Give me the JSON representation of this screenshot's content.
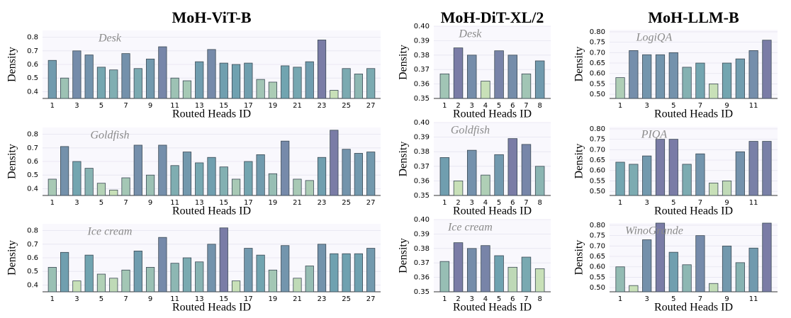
{
  "column_titles": [
    "MoH-ViT-B",
    "MoH-DiT-XL/2",
    "MoH-LLM-B"
  ],
  "chart_data": [
    {
      "type": "bar",
      "annotation": "Desk",
      "xlabel": "Routed Heads ID",
      "ylabel": "Density",
      "categories": [
        1,
        null,
        3,
        null,
        5,
        null,
        7,
        null,
        9,
        null,
        11,
        null,
        13,
        null,
        15,
        null,
        17,
        null,
        19,
        null,
        21,
        null,
        23,
        null,
        25,
        null,
        27
      ],
      "values": [
        0.63,
        0.5,
        0.7,
        0.67,
        0.58,
        0.56,
        0.68,
        0.57,
        0.64,
        0.73,
        0.5,
        0.48,
        0.62,
        0.71,
        0.61,
        0.6,
        0.61,
        0.49,
        0.47,
        0.59,
        0.58,
        0.62,
        0.78,
        0.41,
        0.57,
        0.53,
        0.57
      ],
      "ylim": [
        0.35,
        0.85
      ],
      "yticks": [
        0.4,
        0.5,
        0.6,
        0.7,
        0.8
      ],
      "grid": true,
      "colormap": [
        "#c8e0b8",
        "#6fa2b0",
        "#7a7ca6"
      ]
    },
    {
      "type": "bar",
      "annotation": "Goldfish",
      "xlabel": "Routed Heads ID",
      "ylabel": "Density",
      "categories": [
        1,
        null,
        3,
        null,
        5,
        null,
        7,
        null,
        9,
        null,
        11,
        null,
        13,
        null,
        15,
        null,
        17,
        null,
        19,
        null,
        21,
        null,
        23,
        null,
        25,
        null,
        27
      ],
      "values": [
        0.47,
        0.71,
        0.6,
        0.55,
        0.44,
        0.39,
        0.48,
        0.72,
        0.5,
        0.72,
        0.57,
        0.67,
        0.59,
        0.63,
        0.56,
        0.47,
        0.6,
        0.65,
        0.51,
        0.75,
        0.47,
        0.46,
        0.63,
        0.83,
        0.69,
        0.66,
        0.67
      ],
      "ylim": [
        0.35,
        0.85
      ],
      "yticks": [
        0.4,
        0.5,
        0.6,
        0.7,
        0.8
      ],
      "grid": true,
      "colormap": [
        "#c8e0b8",
        "#6fa2b0",
        "#7a7ca6"
      ]
    },
    {
      "type": "bar",
      "annotation": "Ice cream",
      "xlabel": "Routed Heads ID",
      "ylabel": "Density",
      "categories": [
        1,
        null,
        3,
        null,
        5,
        null,
        7,
        null,
        9,
        null,
        11,
        null,
        13,
        null,
        15,
        null,
        17,
        null,
        19,
        null,
        21,
        null,
        23,
        null,
        25,
        null,
        27
      ],
      "values": [
        0.53,
        0.64,
        0.43,
        0.62,
        0.48,
        0.45,
        0.51,
        0.65,
        0.53,
        0.75,
        0.56,
        0.6,
        0.57,
        0.7,
        0.82,
        0.43,
        0.67,
        0.62,
        0.51,
        0.69,
        0.45,
        0.54,
        0.7,
        0.63,
        0.63,
        0.63,
        0.67
      ],
      "ylim": [
        0.35,
        0.85
      ],
      "yticks": [
        0.4,
        0.5,
        0.6,
        0.7,
        0.8
      ],
      "grid": true,
      "colormap": [
        "#c8e0b8",
        "#6fa2b0",
        "#7a7ca6"
      ]
    },
    {
      "type": "bar",
      "annotation": "Desk",
      "xlabel": "Routed Heads ID",
      "ylabel": "Density",
      "categories": [
        1,
        2,
        3,
        4,
        5,
        6,
        7,
        8
      ],
      "values": [
        0.367,
        0.385,
        0.38,
        0.362,
        0.383,
        0.38,
        0.367,
        0.376
      ],
      "ylim": [
        0.35,
        0.4
      ],
      "yticks": [
        0.35,
        0.36,
        0.37,
        0.38,
        0.39,
        {
          "value": 0.4,
          "label": "0.40"
        }
      ],
      "grid": true,
      "colormap": [
        "#c8e0b8",
        "#6fa2b0",
        "#7a7ca6"
      ]
    },
    {
      "type": "bar",
      "annotation": "Goldfish",
      "xlabel": "Routed Heads ID",
      "ylabel": "Density",
      "categories": [
        1,
        2,
        3,
        4,
        5,
        6,
        7,
        8
      ],
      "values": [
        0.376,
        0.36,
        0.381,
        0.364,
        0.378,
        0.389,
        0.385,
        0.37
      ],
      "ylim": [
        0.35,
        0.4
      ],
      "yticks": [
        0.35,
        0.36,
        0.37,
        0.38,
        0.39,
        {
          "value": 0.4,
          "label": "0.40"
        }
      ],
      "grid": true,
      "colormap": [
        "#c8e0b8",
        "#6fa2b0",
        "#7a7ca6"
      ]
    },
    {
      "type": "bar",
      "annotation": "Ice cream",
      "xlabel": "Routed Heads ID",
      "ylabel": "Density",
      "categories": [
        1,
        2,
        3,
        4,
        5,
        6,
        7,
        8
      ],
      "values": [
        0.371,
        0.384,
        0.38,
        0.382,
        0.375,
        0.367,
        0.374,
        0.366
      ],
      "ylim": [
        0.35,
        0.4
      ],
      "yticks": [
        0.35,
        0.36,
        0.37,
        0.38,
        0.39,
        {
          "value": 0.4,
          "label": "0.40"
        }
      ],
      "grid": true,
      "colormap": [
        "#c8e0b8",
        "#6fa2b0",
        "#7a7ca6"
      ]
    },
    {
      "type": "bar",
      "annotation": "LogiQA",
      "xlabel": "Routed Heads ID",
      "ylabel": "Density",
      "categories": [
        1,
        null,
        3,
        null,
        5,
        null,
        7,
        null,
        9,
        null,
        11,
        null
      ],
      "values": [
        0.58,
        0.71,
        0.69,
        0.69,
        0.7,
        0.63,
        0.65,
        0.55,
        0.65,
        0.67,
        0.71,
        0.76
      ],
      "ylim": [
        0.48,
        0.81
      ],
      "yticks": [
        {
          "value": 0.5,
          "label": "0.50"
        },
        {
          "value": 0.55,
          "label": "0.55"
        },
        {
          "value": 0.6,
          "label": "0.60"
        },
        {
          "value": 0.65,
          "label": "0.65"
        },
        {
          "value": 0.7,
          "label": "0.70"
        },
        {
          "value": 0.75,
          "label": "0.75"
        },
        {
          "value": 0.8,
          "label": "0.80"
        }
      ],
      "grid": true,
      "colormap": [
        "#c8e0b8",
        "#6fa2b0",
        "#7a7ca6"
      ]
    },
    {
      "type": "bar",
      "annotation": "PIQA",
      "xlabel": "Routed Heads ID",
      "ylabel": "Density",
      "categories": [
        1,
        null,
        3,
        null,
        5,
        null,
        7,
        null,
        9,
        null,
        11,
        null
      ],
      "values": [
        0.64,
        0.63,
        0.67,
        0.75,
        0.75,
        0.63,
        0.68,
        0.54,
        0.55,
        0.69,
        0.74,
        0.74
      ],
      "ylim": [
        0.48,
        0.81
      ],
      "yticks": [
        {
          "value": 0.5,
          "label": "0.50"
        },
        {
          "value": 0.55,
          "label": "0.55"
        },
        {
          "value": 0.6,
          "label": "0.60"
        },
        {
          "value": 0.65,
          "label": "0.65"
        },
        {
          "value": 0.7,
          "label": "0.70"
        },
        {
          "value": 0.75,
          "label": "0.75"
        },
        {
          "value": 0.8,
          "label": "0.80"
        }
      ],
      "grid": true,
      "colormap": [
        "#c8e0b8",
        "#6fa2b0",
        "#7a7ca6"
      ]
    },
    {
      "type": "bar",
      "annotation": "WinoGrande",
      "xlabel": "Routed Heads ID",
      "ylabel": "Density",
      "categories": [
        1,
        null,
        3,
        null,
        5,
        null,
        7,
        null,
        9,
        null,
        11,
        null
      ],
      "values": [
        0.6,
        0.51,
        0.73,
        0.81,
        0.67,
        0.61,
        0.75,
        0.52,
        0.7,
        0.62,
        0.69,
        0.81
      ],
      "ylim": [
        0.48,
        0.81
      ],
      "yticks": [
        {
          "value": 0.5,
          "label": "0.50"
        },
        {
          "value": 0.55,
          "label": "0.55"
        },
        {
          "value": 0.6,
          "label": "0.60"
        },
        {
          "value": 0.65,
          "label": "0.65"
        },
        {
          "value": 0.7,
          "label": "0.70"
        },
        {
          "value": 0.75,
          "label": "0.75"
        },
        {
          "value": 0.8,
          "label": "0.80"
        }
      ],
      "grid": true,
      "colormap": [
        "#c8e0b8",
        "#6fa2b0",
        "#7a7ca6"
      ]
    }
  ]
}
